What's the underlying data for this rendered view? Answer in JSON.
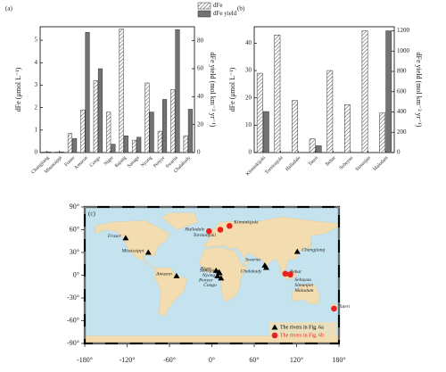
{
  "chart_data": [
    {
      "type": "bar",
      "panel": "(a)",
      "categories": [
        "Changjiang",
        "Mississippi",
        "Fraser",
        "Amazon",
        "Congo",
        "Niger",
        "Rajang",
        "Sanaga",
        "Nyong",
        "Penyor",
        "Swarna",
        "Chalakudy"
      ],
      "series": [
        {
          "name": "dFe",
          "color": "#ffffff",
          "hatch": true,
          "values": [
            0.02,
            0.02,
            0.85,
            1.9,
            3.2,
            1.8,
            5.5,
            0.55,
            3.1,
            0.95,
            2.8,
            0.75
          ]
        },
        {
          "name": "dFe yield",
          "color": "#737373",
          "axis": "y2",
          "values": [
            0.5,
            0.5,
            10,
            86,
            60,
            6,
            12,
            11,
            29,
            38,
            88,
            31
          ]
        }
      ],
      "ylabel": "dFe (μmol L⁻¹)",
      "y2label": "dFe yield (mol km⁻² yr⁻¹)",
      "ylim": [
        0,
        5.6
      ],
      "yticks": [
        0,
        1,
        2,
        3,
        4,
        5
      ],
      "y2lim": [
        0,
        90
      ],
      "y2ticks": [
        0,
        20,
        40,
        60,
        80
      ]
    },
    {
      "type": "bar",
      "panel": "(b)",
      "categories": [
        "Kiiminkijoki",
        "Tornionjoki",
        "Halladale",
        "Tateri",
        "Bebar",
        "Sebuyau",
        "Simunjan",
        "Maludam"
      ],
      "series": [
        {
          "color": "#ffffff",
          "hatch": true,
          "values": [
            29,
            43,
            19,
            5,
            30,
            17.5,
            44.5,
            14.5
          ]
        },
        {
          "color": "#737373",
          "axis": "y2",
          "values": [
            404,
            null,
            null,
            67,
            null,
            null,
            null,
            1200
          ]
        }
      ],
      "ylabel": "dFe (μmol L⁻¹)",
      "y2label": "dFe yield (mol km⁻² yr⁻¹)",
      "ylim": [
        0,
        46
      ],
      "yticks": [
        0,
        10,
        20,
        30,
        40
      ],
      "y2lim": [
        0,
        1240
      ],
      "y2ticks": [
        0,
        200,
        400,
        600,
        800,
        1000,
        1200
      ]
    },
    {
      "type": "scatter",
      "panel": "(c)",
      "xlim": [
        -180,
        180
      ],
      "xticks": [
        {
          "value": -180,
          "label": "-180°"
        },
        {
          "value": -120,
          "label": "-120°"
        },
        {
          "value": -60,
          "label": "-60°"
        },
        {
          "value": 0,
          "label": "0°"
        },
        {
          "value": 60,
          "label": "60°"
        },
        {
          "value": 120,
          "label": "120°"
        },
        {
          "value": 180,
          "label": "180°"
        }
      ],
      "ylim": [
        -90,
        90
      ],
      "yticks": [
        {
          "value": -90,
          "label": "-90°"
        },
        {
          "value": -60,
          "label": "-60°"
        },
        {
          "value": -30,
          "label": "-30°"
        },
        {
          "value": 0,
          "label": "0°"
        },
        {
          "value": 30,
          "label": "30°"
        },
        {
          "value": 60,
          "label": "60°"
        },
        {
          "value": 90,
          "label": "90°"
        }
      ],
      "legend": "lower right",
      "series": [
        {
          "name": "The rivers in Fig. 6a",
          "color": "#000000",
          "marker": "triangle",
          "labels": [
            "Fraser",
            "Mississippi",
            "Amazon",
            "Niger",
            "Sanaga",
            "Penyor",
            "Congo",
            "Nyong",
            "Swarna",
            "Chalakudy",
            "Changjiang"
          ],
          "x": [
            -122,
            -90,
            -50,
            6,
            10,
            8,
            13,
            11,
            75,
            77,
            121
          ],
          "y": [
            49,
            30,
            -1,
            6,
            4,
            -1,
            -4,
            3,
            13,
            10,
            31
          ]
        },
        {
          "name": "The rivers in Fig. 6b",
          "color": "#e8211f",
          "marker": "circle",
          "labels": [
            "Halladale",
            "Tornionjoki",
            "Kiiminkijoki",
            "Bebar",
            "Sebuyau",
            "Simunjan",
            "Maludam",
            "Tateri"
          ],
          "x": [
            -4,
            12,
            25,
            104,
            111,
            111,
            111,
            173
          ],
          "y": [
            58,
            60,
            65,
            2,
            1,
            1,
            1,
            -44
          ]
        }
      ]
    }
  ]
}
